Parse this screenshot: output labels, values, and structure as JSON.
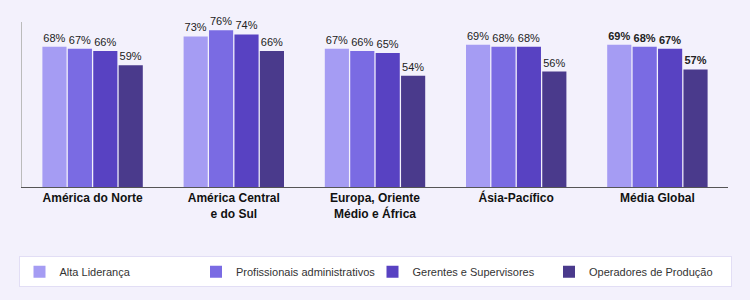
{
  "chart_data": {
    "type": "bar",
    "categories": [
      "América do Norte",
      "América Central e do Sul",
      "Europa, Oriente Médio e África",
      "Ásia-Pacífico",
      "Média Global"
    ],
    "series": [
      {
        "name": "Alta Liderança",
        "color": "#a59cf3",
        "values": [
          68,
          73,
          67,
          69,
          69
        ],
        "value_labels": [
          "68%",
          "73%",
          "67%",
          "69%",
          "69%"
        ]
      },
      {
        "name": "Profissionais administrativos",
        "color": "#7a6be3",
        "values": [
          67,
          76,
          66,
          68,
          68
        ],
        "value_labels": [
          "67%",
          "76%",
          "66%",
          "68%",
          "68%"
        ]
      },
      {
        "name": "Gerentes e Supervisores",
        "color": "#5842c2",
        "values": [
          66,
          74,
          65,
          68,
          67
        ],
        "value_labels": [
          "66%",
          "74%",
          "65%",
          "68%",
          "67%"
        ]
      },
      {
        "name": "Operadores de Produção",
        "color": "#4a3a8c",
        "values": [
          59,
          66,
          54,
          56,
          57
        ],
        "value_labels": [
          "59%",
          "66%",
          "54%",
          "56%",
          "57%"
        ]
      }
    ],
    "ylim": [
      0,
      80
    ],
    "data_labels": true,
    "tick_labels": "x",
    "grid": false,
    "legend": "bottom"
  }
}
